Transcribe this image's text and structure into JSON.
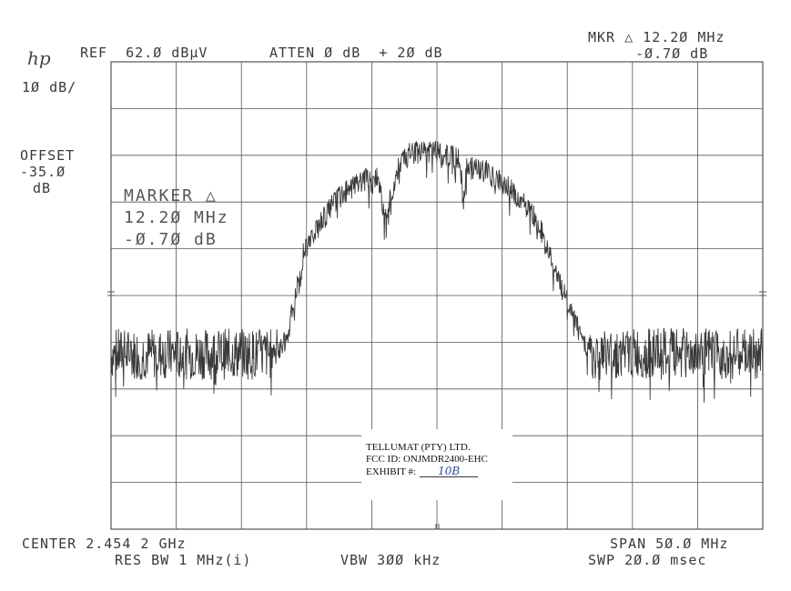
{
  "header": {
    "logo": "hp",
    "ref": "REF  62.Ø dBµV",
    "atten": "ATTEN Ø dB  + 2Ø dB",
    "mkr_line1": "MKR △ 12.2Ø MHz",
    "mkr_line2": "-Ø.7Ø dB",
    "scale": "1Ø dB/"
  },
  "offset": {
    "label": "OFFSET",
    "value": "-35.Ø",
    "unit": "dB"
  },
  "marker_readout": {
    "title": "MARKER △",
    "freq": "12.2Ø MHz",
    "level": "-Ø.7Ø dB"
  },
  "footer": {
    "center": "CENTER 2.454 2 GHz",
    "span": "SPAN 5Ø.Ø MHz",
    "res_bw": "RES BW 1 MHz(i)",
    "vbw": "VBW 3ØØ kHz",
    "swp": "SWP 2Ø.Ø msec"
  },
  "exhibit_label": {
    "company": "TELLUMAT (PTY) LTD.",
    "fcc": "FCC ID: ONJMDR2400-EHC",
    "exhibit_prefix": "EXHIBIT #:",
    "exhibit_value": "10B"
  },
  "colors": {
    "trace": "#3a3a3a",
    "grid": "#555555",
    "text": "#3a3a3a"
  },
  "chart_data": {
    "type": "line",
    "title": "",
    "xlabel": "",
    "ylabel": "",
    "x_units": "MHz",
    "y_units": "dBµV",
    "xlim": [
      2429.2,
      2479.2
    ],
    "ylim": [
      -37.98,
      62.0
    ],
    "grid": true,
    "x_divisions": 10,
    "y_divisions": 10,
    "envelope": {
      "x": [
        2429.2,
        2441.2,
        2442.7,
        2444.0,
        2446.2,
        2448.2,
        2449.7,
        2450.2,
        2451.2,
        2452.2,
        2454.2,
        2456.0,
        2456.2,
        2456.5,
        2458.0,
        2460.0,
        2462.0,
        2463.5,
        2465.5,
        2466.2,
        2467.0,
        2479.2
      ],
      "y": [
        0,
        0,
        5,
        24,
        34,
        39,
        40,
        30,
        42,
        45,
        45,
        44,
        34,
        42,
        41,
        37,
        30,
        18,
        4,
        0,
        0,
        0
      ]
    },
    "noise_floor_dBuV": [
      -6,
      5
    ],
    "marker": {
      "delta_freq_MHz": 12.2,
      "delta_level_dB": -0.7
    }
  }
}
